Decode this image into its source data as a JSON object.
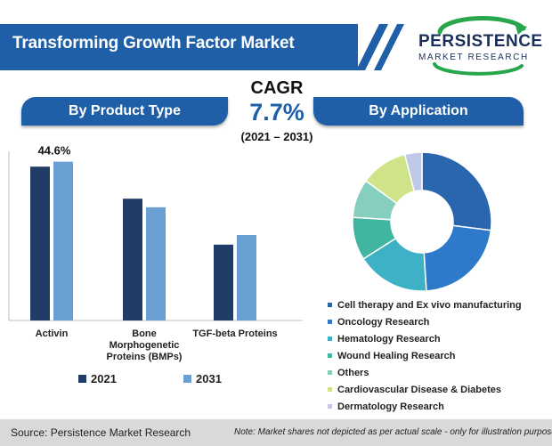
{
  "header": {
    "title": "Transforming Growth Factor Market",
    "logo_name": "PERSISTENCE",
    "logo_sub": "MARKET RESEARCH"
  },
  "sections": {
    "left": "By Product Type",
    "right": "By Application"
  },
  "cagr": {
    "label": "CAGR",
    "value": "7.7%",
    "period": "(2021 – 2031)"
  },
  "footer": {
    "source": "Source: Persistence Market Research",
    "note": "Note: Market shares not depicted as per actual scale - only for illustration purposes"
  },
  "colors": {
    "brand_blue": "#1f5fa8",
    "dark_navy": "#1a2f5a"
  },
  "chart_data": [
    {
      "type": "bar",
      "categories": [
        "Activin",
        "Bone Morphogenetic Proteins (BMPs)",
        "TGF-beta Proteins"
      ],
      "category_lines": [
        [
          "Activin"
        ],
        [
          "Bone",
          "Morphogenetic",
          "Proteins (BMPs)"
        ],
        [
          "TGF-beta Proteins"
        ]
      ],
      "series": [
        {
          "name": "2021",
          "values": [
            43.2,
            34.2,
            21.3
          ],
          "color": "#1f3d66"
        },
        {
          "name": "2031",
          "values": [
            44.6,
            31.8,
            24.0
          ],
          "color": "#6a9fd4"
        }
      ],
      "data_labels": [
        {
          "series": 1,
          "index": 0,
          "text": "44.6%"
        }
      ],
      "ylim": [
        0,
        50
      ],
      "grid": false,
      "legend": "bottom"
    },
    {
      "type": "pie",
      "donut": true,
      "labels": [
        "Cell therapy and Ex vivo manufacturing",
        "Oncology Research",
        "Hematology Research",
        "Wound Healing Research",
        "Others",
        "Cardiovascular Disease & Diabetes",
        "Dermatology Research"
      ],
      "values": [
        27,
        22,
        17,
        10,
        9,
        11,
        4
      ],
      "colors": [
        "#2a66ad",
        "#2e79c9",
        "#3fb1c6",
        "#40b5a0",
        "#86cfbf",
        "#cfe389",
        "#c0c9e8"
      ],
      "legend": "bottom-right"
    }
  ]
}
